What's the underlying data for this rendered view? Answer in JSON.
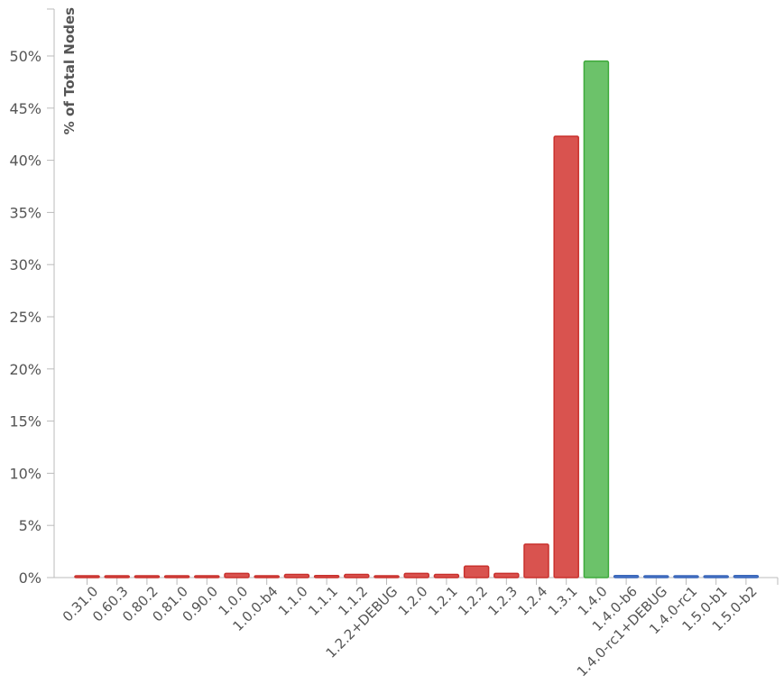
{
  "chart_data": {
    "type": "bar",
    "title": "",
    "xlabel": "",
    "ylabel": "% of Total Nodes",
    "ylim": [
      0,
      54
    ],
    "yticks": [
      0,
      5,
      10,
      15,
      20,
      25,
      30,
      35,
      40,
      45,
      50
    ],
    "ytick_labels": [
      "0%",
      "5%",
      "10%",
      "15%",
      "20%",
      "25%",
      "30%",
      "35%",
      "40%",
      "45%",
      "50%"
    ],
    "grid": false,
    "categories": [
      "0.31.0",
      "0.60.3",
      "0.80.2",
      "0.81.0",
      "0.90.0",
      "1.0.0",
      "1.0.0-b4",
      "1.1.0",
      "1.1.1",
      "1.1.2",
      "1.2.2+DEBUG",
      "1.2.0",
      "1.2.1",
      "1.2.2",
      "1.2.3",
      "1.2.4",
      "1.3.1",
      "1.4.0",
      "1.4.0-b6",
      "1.4.0-rc1+DEBUG",
      "1.4.0-rc1",
      "1.5.0-b1",
      "1.5.0-b2"
    ],
    "values": [
      0.05,
      0.05,
      0.05,
      0.05,
      0.05,
      0.4,
      0.05,
      0.3,
      0.2,
      0.3,
      0.05,
      0.4,
      0.3,
      1.1,
      0.4,
      3.2,
      42.3,
      49.5,
      0.2,
      0.05,
      0.05,
      0.05,
      0.2
    ],
    "bar_colors": [
      "#d9534f",
      "#d9534f",
      "#d9534f",
      "#d9534f",
      "#d9534f",
      "#d9534f",
      "#d9534f",
      "#d9534f",
      "#d9534f",
      "#d9534f",
      "#d9534f",
      "#d9534f",
      "#d9534f",
      "#d9534f",
      "#d9534f",
      "#d9534f",
      "#d9534f",
      "#6cc26a",
      "#4a7bd0",
      "#4a7bd0",
      "#4a7bd0",
      "#4a7bd0",
      "#4a7bd0"
    ],
    "bar_stroke_colors": [
      "#c9302c",
      "#c9302c",
      "#c9302c",
      "#c9302c",
      "#c9302c",
      "#c9302c",
      "#c9302c",
      "#c9302c",
      "#c9302c",
      "#c9302c",
      "#c9302c",
      "#c9302c",
      "#c9302c",
      "#c9302c",
      "#c9302c",
      "#c9302c",
      "#c9302c",
      "#3faa3c",
      "#3a66b8",
      "#3a66b8",
      "#3a66b8",
      "#3a66b8",
      "#3a66b8"
    ]
  }
}
